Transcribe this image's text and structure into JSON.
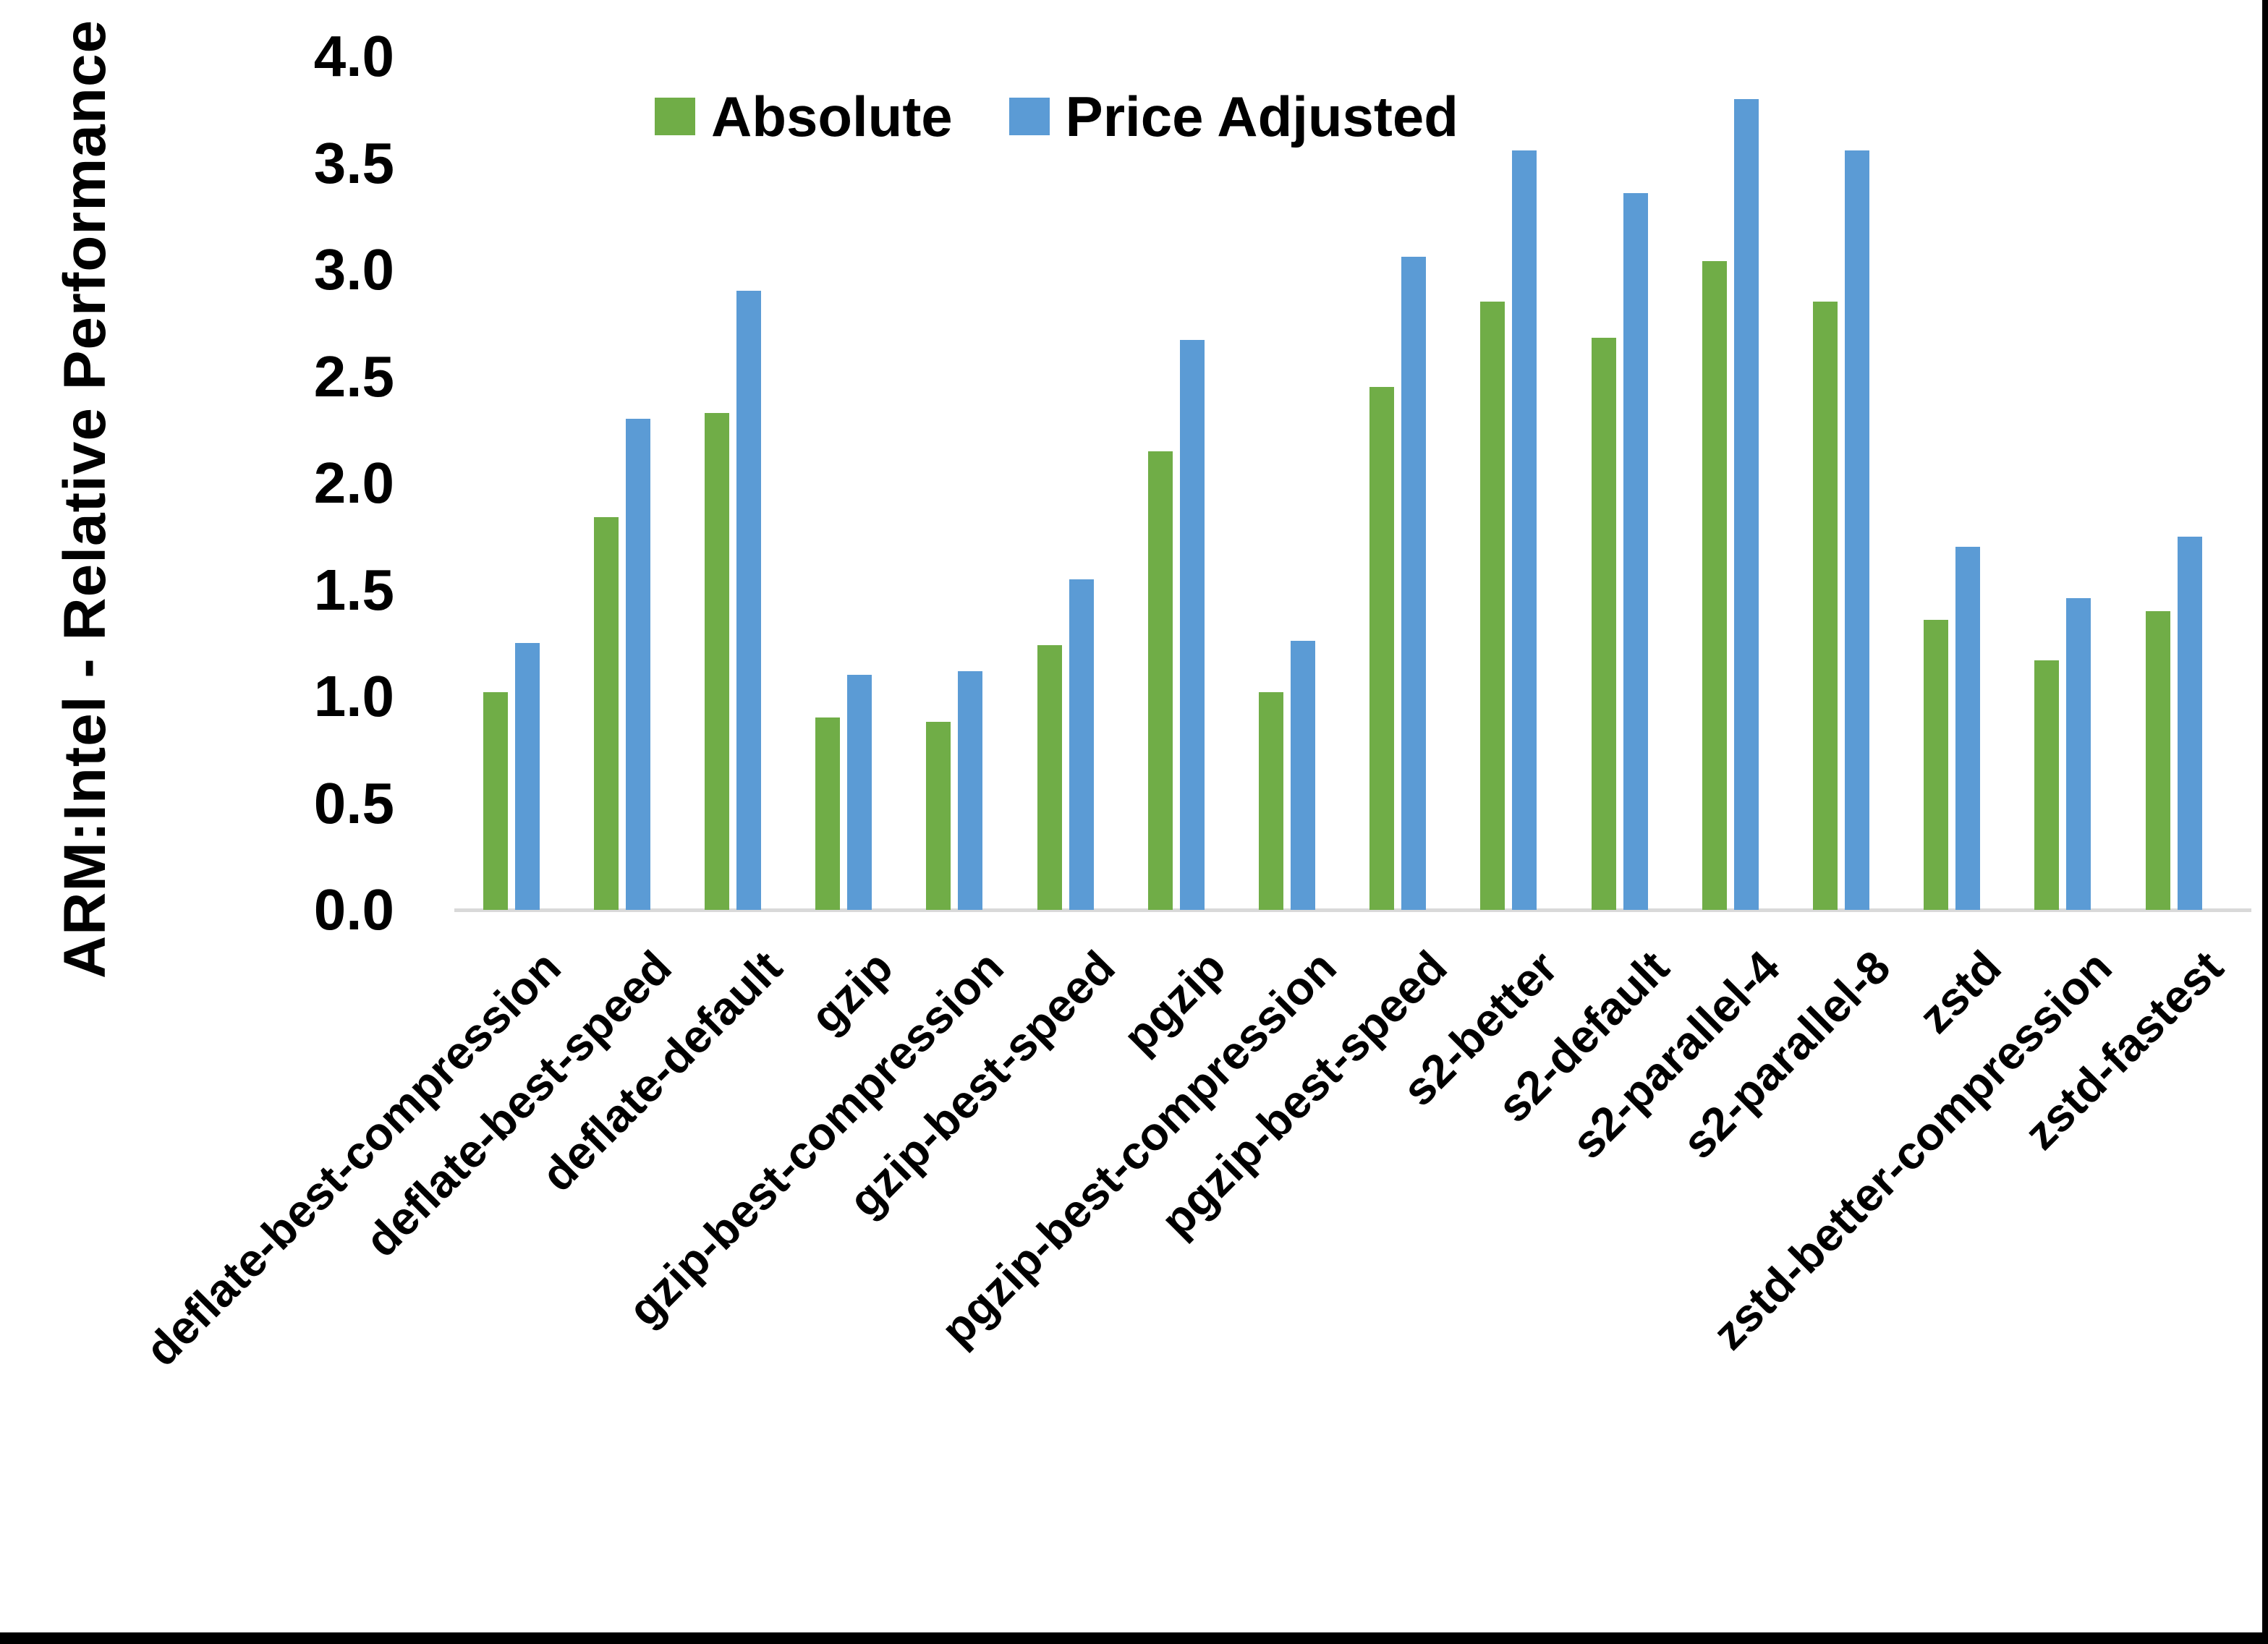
{
  "chart_data": {
    "type": "bar",
    "title": "",
    "xlabel": "",
    "ylabel": "ARM:Intel - Relative Performance",
    "ylim": [
      0.0,
      4.0
    ],
    "ytick_step": 0.5,
    "ytick_labels": [
      "0.0",
      "0.5",
      "1.0",
      "1.5",
      "2.0",
      "2.5",
      "3.0",
      "3.5",
      "4.0"
    ],
    "grid": false,
    "legend_position": "top-center",
    "categories": [
      "deflate-best-compression",
      "deflate-best-speed",
      "deflate-default",
      "gzip",
      "gzip-best-compression",
      "gzip-best-speed",
      "pgzip",
      "pgzip-best-compression",
      "pgzip-best-speed",
      "s2-better",
      "s2-default",
      "s2-parallel-4",
      "s2-parallel-8",
      "zstd",
      "zstd-better-compression",
      "zstd-fastest"
    ],
    "series": [
      {
        "name": "Absolute",
        "color": "#70AD47",
        "values": [
          1.02,
          1.84,
          2.33,
          0.9,
          0.88,
          1.24,
          2.15,
          1.02,
          2.45,
          2.85,
          2.68,
          3.04,
          2.85,
          1.36,
          1.17,
          1.4
        ]
      },
      {
        "name": "Price Adjusted",
        "color": "#5B9BD5",
        "values": [
          1.25,
          2.3,
          2.9,
          1.1,
          1.12,
          1.55,
          2.67,
          1.26,
          3.06,
          3.56,
          3.36,
          3.8,
          3.56,
          1.7,
          1.46,
          1.75
        ]
      }
    ],
    "axis_line_color": "#D9D9D9",
    "text_color": "#000000",
    "background_color": "#FFFFFF",
    "frame_color": "#000000"
  }
}
